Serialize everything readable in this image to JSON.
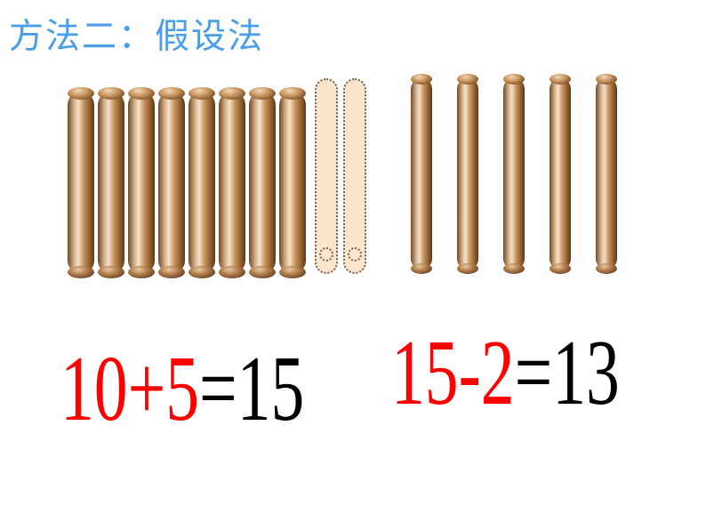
{
  "title": "方法二：假设法",
  "title_color": "#4a9de8",
  "title_fontsize": 39,
  "background_color": "#ffffff",
  "left_sticks": {
    "solid_count": 8,
    "dotted_count": 2,
    "solid_color_gradient": [
      "#6b4a2a",
      "#d9b38c",
      "#f5e3cc",
      "#c9965e",
      "#8b5a2b",
      "#5a3a1a"
    ],
    "dotted_fill": "#fbe6cc",
    "dotted_border_color": "#666666",
    "stick_width": 30,
    "stick_height": 205
  },
  "right_sticks": {
    "solid_count": 5,
    "stick_width": 24,
    "stick_height": 215,
    "gap": 28
  },
  "equations": {
    "left": {
      "lhs": "10+",
      "mid": "5",
      "eq": "=",
      "rhs": "15",
      "lhs_color": "#ff0000",
      "mid_color": "#ff0000",
      "eq_color": "#000000",
      "rhs_color": "#000000",
      "fontsize": 105
    },
    "right": {
      "lhs": "15-",
      "mid": "2",
      "eq": "=",
      "rhs": "13",
      "lhs_color": "#ff0000",
      "mid_color": "#ff0000",
      "eq_color": "#000000",
      "rhs_color": "#000000",
      "fontsize": 105
    }
  }
}
